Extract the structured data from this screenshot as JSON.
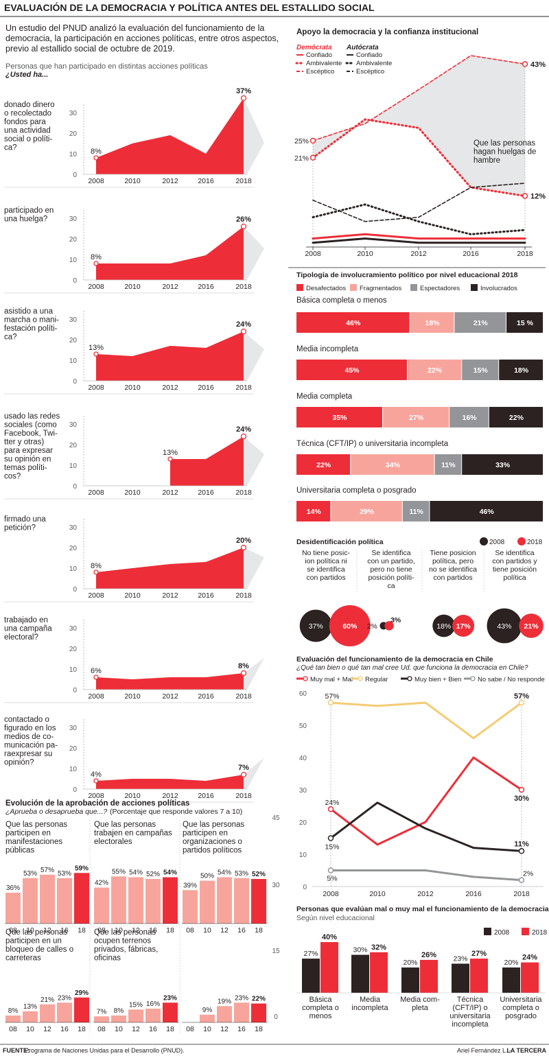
{
  "title": "EVALUACIÓN DE LA DEMOCRACIA Y POLÍTICA ANTES DEL ESTALLIDO SOCIAL",
  "intro": [
    "Un estudio del PNUD analizó la evaluación del funcionamiento de la",
    "democracia, la participación en acciones políticas, entre otros aspectos,",
    "previo al estallido social de octubre de 2019."
  ],
  "participation": {
    "subtitle": "Personas que han participado en distintas acciones políticas",
    "question": "¿Usted ha...",
    "charts": [
      {
        "label": [
          "donado dinero",
          "o recolectado",
          "fondos para",
          "una actividad",
          "social o políti-",
          "ca?"
        ],
        "years": [
          "2008",
          "2010",
          "2012",
          "2016",
          "2018"
        ],
        "values": [
          8,
          15,
          19,
          10,
          37
        ],
        "first_label": "8%",
        "last_label": "37%",
        "yticks": [
          0,
          10,
          20,
          30
        ]
      },
      {
        "label": [
          "participado en",
          "una huelga?"
        ],
        "years": [
          "2008",
          "2010",
          "2012",
          "2016",
          "2018"
        ],
        "values": [
          8,
          8,
          8,
          12,
          26
        ],
        "first_label": "8%",
        "last_label": "26%",
        "yticks": [
          0,
          10,
          20,
          30
        ]
      },
      {
        "label": [
          "asistido a una",
          "marcha o mani-",
          "festación políti-",
          "ca?"
        ],
        "years": [
          "2008",
          "2010",
          "2012",
          "2016",
          "2018"
        ],
        "values": [
          13,
          12,
          17,
          16,
          24
        ],
        "first_label": "13%",
        "last_label": "24%",
        "yticks": [
          0,
          10,
          20,
          30
        ]
      },
      {
        "label": [
          "usado las redes",
          "sociales (como",
          "Facebook, Twi-",
          "tter y otras)",
          "para expresar",
          "su opinión en",
          "temas políti-",
          "cos?"
        ],
        "years": [
          "2008",
          "2010",
          "2012",
          "2016",
          "2018"
        ],
        "values": [
          null,
          null,
          13,
          13,
          24
        ],
        "first_label": "13%",
        "last_label": "24%",
        "yticks": [
          0,
          10,
          20,
          30
        ]
      },
      {
        "label": [
          "firmado una",
          "petición?"
        ],
        "years": [
          "2008",
          "2010",
          "2012",
          "2016",
          "2018"
        ],
        "values": [
          8,
          10,
          12,
          13,
          20
        ],
        "first_label": "8%",
        "last_label": "20%",
        "yticks": [
          0,
          10,
          20,
          30
        ]
      },
      {
        "label": [
          "trabajado en",
          "una campaña",
          "electoral?"
        ],
        "years": [
          "2008",
          "2010",
          "2012",
          "2016",
          "2018"
        ],
        "values": [
          6,
          5,
          6,
          6,
          8
        ],
        "first_label": "6%",
        "last_label": "8%",
        "yticks": [
          0,
          10,
          20,
          30
        ]
      },
      {
        "label": [
          "contactado o",
          "figurado en los",
          "medios de co-",
          "municación pa-",
          "raexpresar su",
          "opinión?"
        ],
        "years": [
          "2008",
          "2010",
          "2012",
          "2016",
          "2018"
        ],
        "values": [
          4,
          5,
          5,
          4,
          7
        ],
        "first_label": "4%",
        "last_label": "7%",
        "yticks": [
          0,
          10,
          20,
          30
        ]
      }
    ]
  },
  "approval": {
    "title": "Evolución de la aprobación de acciones políticas",
    "question": "¿Aprueba o desaprueba que...?",
    "note": "(Porcentaje que responde valores 7 a 10)",
    "charts": [
      {
        "label": [
          "Que las personas",
          "participen en",
          "manifestaciones",
          "públicas"
        ],
        "years": [
          "08",
          "10",
          "12",
          "16",
          "18"
        ],
        "values": [
          36,
          53,
          57,
          53,
          59
        ],
        "labels": [
          "36%",
          "53%",
          "57%",
          "53%",
          "59%"
        ]
      },
      {
        "label": [
          "Que las personas",
          "trabajen en campañas",
          "electorales"
        ],
        "years": [
          "08",
          "10",
          "12",
          "16",
          "18"
        ],
        "values": [
          42,
          55,
          54,
          52,
          54
        ],
        "labels": [
          "42%",
          "55%",
          "54%",
          "52%",
          "54%"
        ]
      },
      {
        "label": [
          "Que las personas",
          "participen en",
          "organizaciones o",
          "partidos políticos"
        ],
        "years": [
          "08",
          "10",
          "12",
          "16",
          "18"
        ],
        "values": [
          39,
          50,
          54,
          53,
          52
        ],
        "labels": [
          "39%",
          "50%",
          "54%",
          "53%",
          "52%"
        ]
      },
      {
        "label": [
          "Que las personas",
          "participen en un",
          "bloqueo de calles o",
          "carreteras"
        ],
        "years": [
          "08",
          "10",
          "12",
          "16",
          "18"
        ],
        "values": [
          8,
          13,
          21,
          23,
          29
        ],
        "labels": [
          "8%",
          "13%",
          "21%",
          "23%",
          "29%"
        ]
      },
      {
        "label": [
          "Que las personas",
          "ocupen terrenos",
          "privados, fábricas,",
          "oficinas"
        ],
        "years": [
          "08",
          "10",
          "12",
          "16",
          "18"
        ],
        "values": [
          7,
          8,
          15,
          16,
          23
        ],
        "labels": [
          "7%",
          "8%",
          "15%",
          "16%",
          "23%"
        ]
      },
      {
        "label": [],
        "years": [
          "08",
          "10",
          "12",
          "16",
          "18"
        ],
        "values": [
          null,
          9,
          19,
          23,
          22
        ],
        "labels": [
          "",
          "9%",
          "19%",
          "23%",
          "22%"
        ]
      }
    ],
    "scale": [
      "45",
      "30",
      "15",
      "0"
    ]
  },
  "support": {
    "title": "Apoyo  la democracia y la confianza institucional",
    "group1": "Demócrata",
    "group2": "Autócrata",
    "legend": [
      "Confiado",
      "Ambivalente",
      "Escéptico"
    ],
    "years": [
      "2008",
      "2010",
      "2012",
      "2016",
      "2018"
    ],
    "annotation": [
      "Que las personas",
      "hagan huelgas de",
      "hambre"
    ],
    "labels": {
      "esc_start": "25%",
      "amb_start": "21%",
      "esc_end": "43%",
      "amb_end": "12%"
    },
    "chart_data": {
      "type": "line",
      "x": [
        "2008",
        "2010",
        "2012",
        "2016",
        "2018"
      ],
      "series": [
        {
          "name": "Demócrata Confiado",
          "values": [
            2,
            3,
            2,
            2,
            2
          ]
        },
        {
          "name": "Demócrata Ambivalente",
          "values": [
            21,
            30,
            28,
            14,
            12
          ]
        },
        {
          "name": "Demócrata Escéptico",
          "values": [
            25,
            29,
            37,
            45,
            43
          ]
        },
        {
          "name": "Autócrata Confiado",
          "values": [
            1,
            2,
            1,
            1,
            1
          ]
        },
        {
          "name": "Autócrata Ambivalente",
          "values": [
            7,
            10,
            6,
            3,
            4
          ]
        },
        {
          "name": "Autócrata Escéptico",
          "values": [
            11,
            6,
            7,
            14,
            15
          ]
        }
      ]
    }
  },
  "typology": {
    "title": "Tipología de involucramiento político por nivel educacional 2018",
    "legend": [
      "Desafectados",
      "Fragmentados",
      "Espectadores",
      "Involucrados"
    ],
    "colors": [
      "#ed2e38",
      "#f7a59c",
      "#939598",
      "#2b2221"
    ],
    "rows": [
      {
        "label": "Básica completa o menos",
        "values": [
          46,
          18,
          21,
          15
        ],
        "texts": [
          "46%",
          "18%",
          "21%",
          "15 %"
        ]
      },
      {
        "label": "Media incompleta",
        "values": [
          45,
          22,
          15,
          18
        ],
        "texts": [
          "45%",
          "22%",
          "15%",
          "18%"
        ]
      },
      {
        "label": "Media completa",
        "values": [
          35,
          27,
          16,
          22
        ],
        "texts": [
          "35%",
          "27%",
          "16%",
          "22%"
        ]
      },
      {
        "label": "Técnica (CFT/IP) o universitaria incompleta",
        "values": [
          22,
          34,
          11,
          33
        ],
        "texts": [
          "22%",
          "34%",
          "11%",
          "33%"
        ]
      },
      {
        "label": "Universitaria completa o posgrado",
        "values": [
          14,
          29,
          11,
          46
        ],
        "texts": [
          "14%",
          "29%",
          "11%",
          "46%"
        ]
      }
    ]
  },
  "deident": {
    "title": "Desidentificación política",
    "legend": [
      "2008",
      "2018"
    ],
    "groups": [
      {
        "label": [
          "No tiene posic-",
          "ion política ni",
          "se identifica",
          "con partidos"
        ],
        "v2008": 37,
        "v2018": 60,
        "t2008": "37%",
        "t2018": "60%"
      },
      {
        "label": [
          "Se identifica",
          "con un partido,",
          "pero no tiene",
          "posición políti-",
          "ca"
        ],
        "v2008": 2,
        "v2018": 3,
        "t2008": "2%",
        "t2018": "3%"
      },
      {
        "label": [
          "Tiene posicion",
          "política, pero",
          "no se identifica",
          "con partidos"
        ],
        "v2008": 18,
        "v2018": 17,
        "t2008": "18%",
        "t2018": "17%"
      },
      {
        "label": [
          "Se identifica",
          "con partidos y",
          "tiene posición",
          "política"
        ],
        "v2008": 43,
        "v2018": 21,
        "t2008": "43%",
        "t2018": "21%"
      }
    ]
  },
  "evaluation": {
    "title": "Evaluación del funcionamiento de la democracia en Chile",
    "question": "¿Qué tan bien o qué tan mal cree Ud. que funciona la democracia en Chile?",
    "legend": [
      "Muy mal + Mal",
      "Regular",
      "Muy bien + Bien",
      "No sabe / No responde"
    ],
    "colors": [
      "#ed2e38",
      "#f5cb73",
      "#2b2221",
      "#939598"
    ],
    "chart_data": {
      "type": "line",
      "x": [
        "2008",
        "2010",
        "2012",
        "2016",
        "2018"
      ],
      "yticks": [
        0,
        10,
        20,
        30,
        40,
        50,
        60
      ],
      "ylim": [
        0,
        60
      ],
      "series": [
        {
          "name": "Muy mal + Mal",
          "values": [
            24,
            13,
            20,
            40,
            30
          ]
        },
        {
          "name": "Regular",
          "values": [
            57,
            56,
            57,
            46,
            57
          ]
        },
        {
          "name": "Muy bien + Bien",
          "values": [
            15,
            26,
            18,
            12,
            11
          ]
        },
        {
          "name": "No sabe / No responde",
          "values": [
            5,
            5,
            5,
            3,
            2
          ]
        }
      ]
    },
    "labels": {
      "s0": [
        "24%",
        "30%"
      ],
      "s1": [
        "57%",
        "57%"
      ],
      "s2": [
        "15%",
        "11%"
      ],
      "s3": [
        "5%",
        "2%"
      ]
    }
  },
  "badeval": {
    "title": "Personas que evalúan mal o muy mal el funcionamiento de la democracia en Chile",
    "subtitle": "Según nivel educacional",
    "legend": [
      "2008",
      "2018"
    ],
    "chart_data": {
      "type": "bar",
      "categories": [
        [
          "Básica",
          "completa o",
          "menos"
        ],
        [
          "Media",
          "incompleta"
        ],
        [
          "Media com-",
          "pleta"
        ],
        [
          "Técnica",
          "(CFT/IP) o",
          "universitaria",
          "incompleta"
        ],
        [
          "Universitaria",
          "completa o",
          "posgrado"
        ]
      ],
      "series": [
        {
          "name": "2008",
          "values": [
            27,
            30,
            20,
            23,
            20
          ],
          "labels": [
            "27%",
            "30%",
            "20%",
            "23%",
            "20%"
          ]
        },
        {
          "name": "2018",
          "values": [
            40,
            32,
            26,
            27,
            24
          ],
          "labels": [
            "40%",
            "32%",
            "26%",
            "27%",
            "24%"
          ]
        }
      ]
    }
  },
  "footer": {
    "source_label": "FUENTE:",
    "source": " Programa de Naciones Unidas para el Desarrollo (PNUD).",
    "credit": "Ariel Fernández L. - ",
    "brand": "LA TERCERA"
  }
}
